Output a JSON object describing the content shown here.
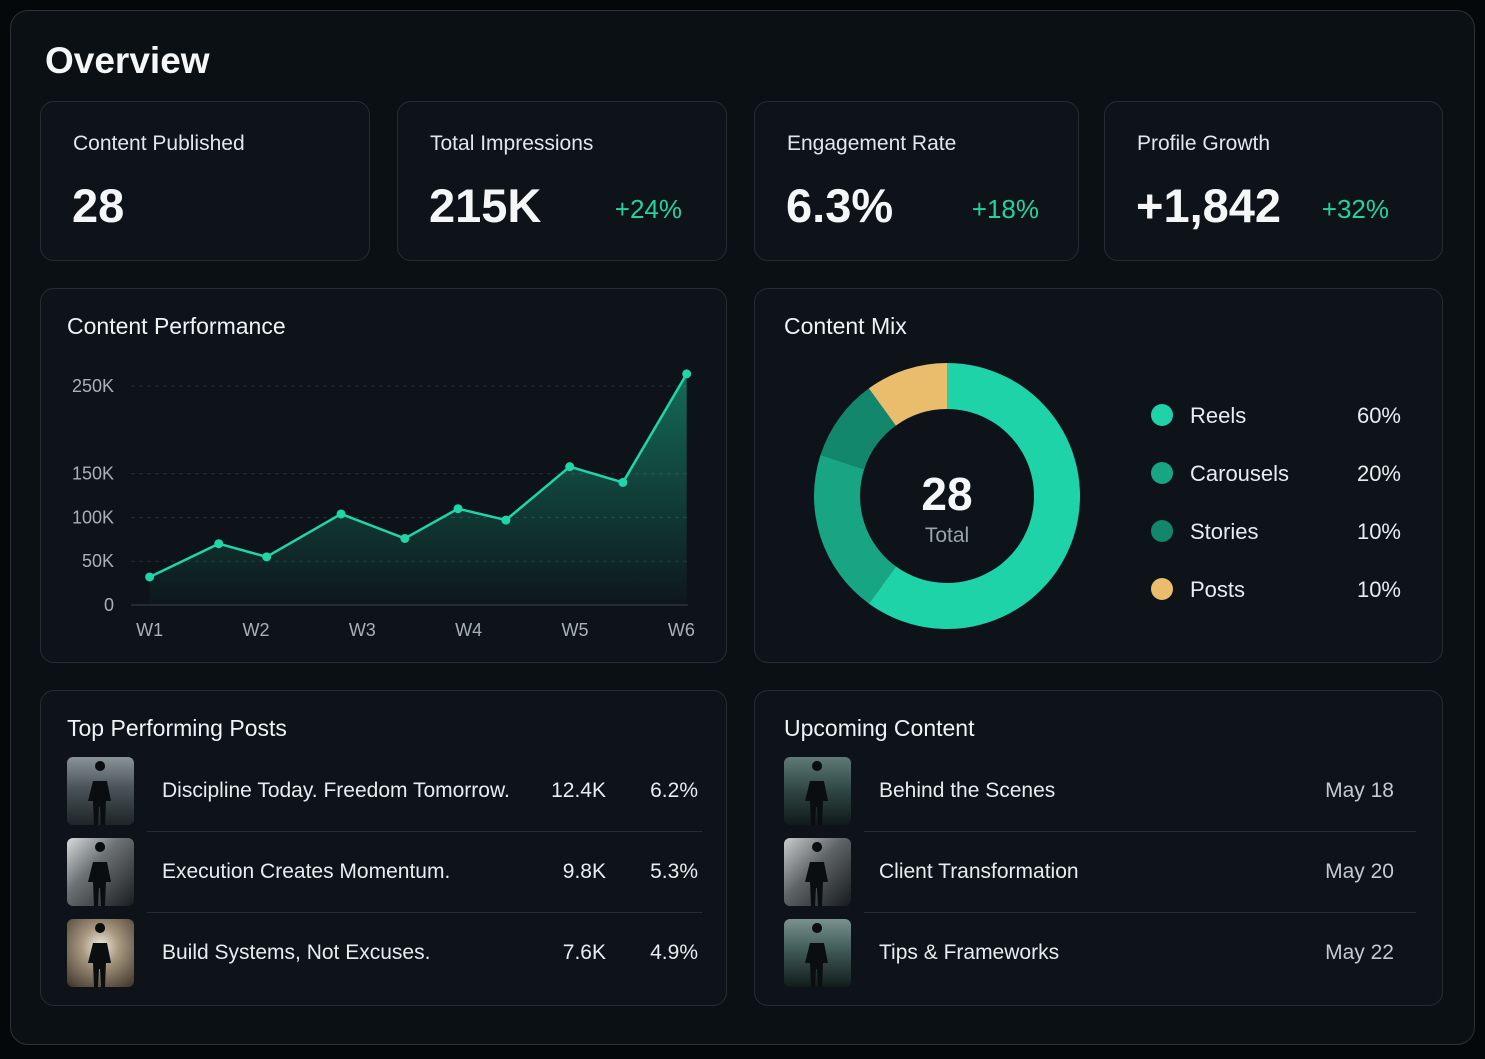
{
  "header": {
    "title": "Overview"
  },
  "kpis": [
    {
      "label": "Content Published",
      "value": "28"
    },
    {
      "label": "Total Impressions",
      "value": "215K",
      "change": "+24%"
    },
    {
      "label": "Engagement Rate",
      "value": "6.3%",
      "change": "+18%"
    },
    {
      "label": "Profile Growth",
      "value": "+1,842",
      "change": "+32%"
    }
  ],
  "performance_chart": {
    "type": "line",
    "title": "Content Performance",
    "x": [
      1,
      1.65,
      2.1,
      2.8,
      3.4,
      3.9,
      4.35,
      4.95,
      5.45,
      6.05
    ],
    "values": [
      32000,
      70000,
      55000,
      104000,
      76000,
      110000,
      97000,
      158000,
      140000,
      264000
    ],
    "color": "#1fd6a8",
    "xlim": [
      0.9,
      6.1
    ],
    "xticks": [
      {
        "value": 1,
        "label": "W1"
      },
      {
        "value": 2,
        "label": "W2"
      },
      {
        "value": 3,
        "label": "W3"
      },
      {
        "value": 4,
        "label": "W4"
      },
      {
        "value": 5,
        "label": "W5"
      },
      {
        "value": 6,
        "label": "W6"
      }
    ],
    "ylim": [
      0,
      265000
    ],
    "yticks": [
      0,
      {
        "value": 50000,
        "label": "50K"
      },
      {
        "value": 100000,
        "label": "100K"
      },
      {
        "value": 150000,
        "label": "150K"
      },
      {
        "value": 250000,
        "label": "250K"
      }
    ],
    "grid": true
  },
  "mix_chart": {
    "type": "donut",
    "title": "Content Mix",
    "center_value": "28",
    "center_label": "Total",
    "categories": [
      "Reels",
      "Carousels",
      "Stories",
      "Posts"
    ],
    "values": [
      60,
      20,
      10,
      10
    ],
    "value_labels": [
      "60%",
      "20%",
      "10%",
      "10%"
    ],
    "colors": [
      "#1ed3a8",
      "#17a584",
      "#12876b",
      "#e9bd6b"
    ]
  },
  "top_posts": {
    "title": "Top Performing Posts",
    "rows": [
      {
        "title": "Discipline Today. Freedom Tomorrow.",
        "views": "12.4K",
        "rate": "6.2%"
      },
      {
        "title": "Execution Creates Momentum.",
        "views": "9.8K",
        "rate": "5.3%"
      },
      {
        "title": "Build Systems, Not Excuses.",
        "views": "7.6K",
        "rate": "4.9%"
      }
    ]
  },
  "upcoming": {
    "title": "Upcoming Content",
    "rows": [
      {
        "title": "Behind the Scenes",
        "date": "May 18"
      },
      {
        "title": "Client Transformation",
        "date": "May 20"
      },
      {
        "title": "Tips & Frameworks",
        "date": "May 22"
      }
    ]
  }
}
